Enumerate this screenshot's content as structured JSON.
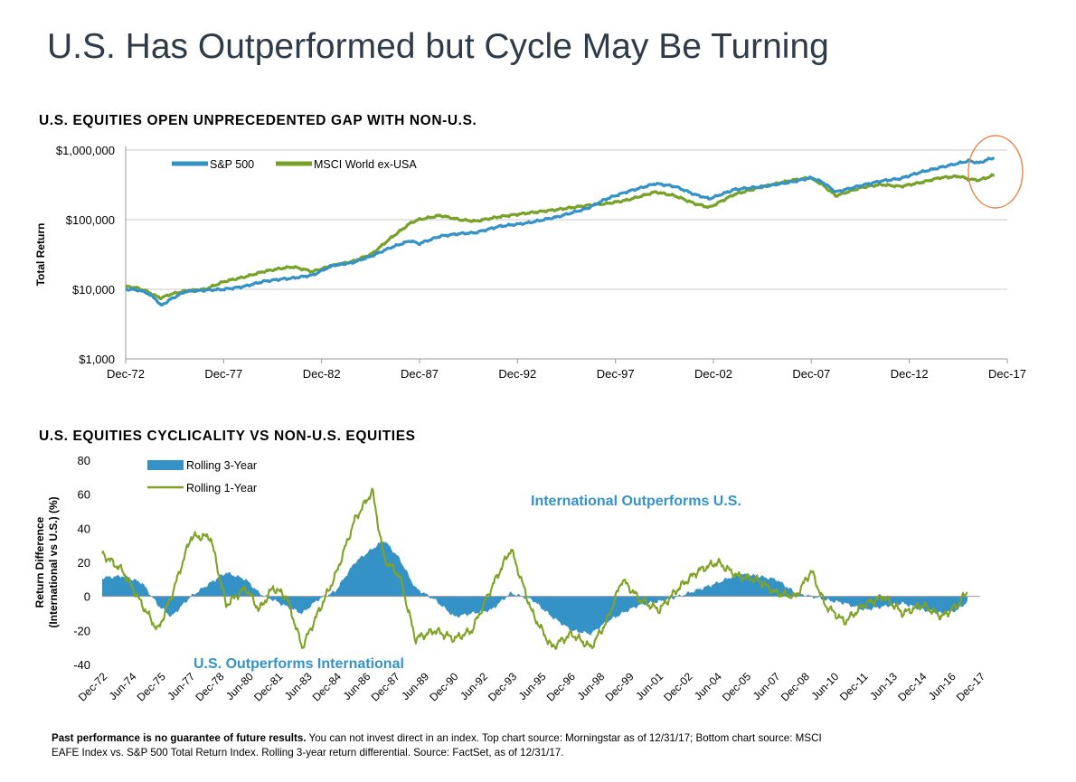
{
  "page": {
    "title": "U.S. Has Outperformed but Cycle May Be Turning",
    "footnote_bold": "Past performance is no guarantee of future results.",
    "footnote_rest": " You can not invest direct in an index. Top chart source: Morningstar as of 12/31/17; Bottom chart source: MSCI EAFE Index vs. S&P 500 Total Return Index. Rolling 3-year return differential. Source: FactSet, as of 12/31/17."
  },
  "colors": {
    "sp500": "#3592c6",
    "msci": "#77a229",
    "rolling3": "#3592c6",
    "rolling1": "#7fa324",
    "highlight_circle": "#e8864a",
    "annotation": "#3592c6"
  },
  "chart_data": [
    {
      "type": "line",
      "title": "U.S. EQUITIES OPEN UNPRECEDENTED GAP WITH NON-U.S.",
      "ylabel": "Total Return",
      "yscale": "log",
      "ylim": [
        1000,
        1000000
      ],
      "yticks": [
        "$1,000",
        "$10,000",
        "$100,000",
        "$1,000,000"
      ],
      "xlim": [
        1972.95,
        2017.95
      ],
      "xticks": [
        "Dec-72",
        "Dec-77",
        "Dec-82",
        "Dec-87",
        "Dec-92",
        "Dec-97",
        "Dec-02",
        "Dec-07",
        "Dec-12",
        "Dec-17"
      ],
      "grid": true,
      "legend": "top-left",
      "annotation": "circle highlighting end of series (2016-2017)",
      "x": [
        1972.95,
        1973.5,
        1974.0,
        1974.5,
        1974.75,
        1975.25,
        1976.0,
        1977.0,
        1978.0,
        1979.0,
        1980.0,
        1980.9,
        1981.5,
        1982.5,
        1983.5,
        1984.5,
        1985.5,
        1986.5,
        1987.5,
        1987.9,
        1989.0,
        1990.0,
        1990.8,
        1992.0,
        1993.5,
        1995.0,
        1996.5,
        1997.5,
        1998.5,
        2000.0,
        2001.0,
        2002.0,
        2002.75,
        2004.0,
        2005.5,
        2007.0,
        2007.9,
        2008.5,
        2009.2,
        2010.5,
        2011.5,
        2012.5,
        2013.5,
        2014.5,
        2015.5,
        2016.0,
        2016.5,
        2017.0,
        2017.3
      ],
      "series": [
        {
          "name": "S&P 500",
          "values": [
            10000,
            9800,
            9000,
            7200,
            5800,
            7200,
            9300,
            9700,
            10000,
            11000,
            13000,
            14000,
            14500,
            16000,
            22000,
            24000,
            30000,
            40000,
            50000,
            45000,
            58000,
            63000,
            65000,
            80000,
            90000,
            110000,
            145000,
            200000,
            250000,
            330000,
            300000,
            230000,
            200000,
            270000,
            300000,
            350000,
            400000,
            350000,
            250000,
            310000,
            360000,
            390000,
            480000,
            560000,
            650000,
            700000,
            650000,
            740000,
            780000
          ]
        },
        {
          "name": "MSCI World ex-USA",
          "values": [
            11000,
            10500,
            9500,
            8000,
            7500,
            8500,
            9500,
            10000,
            13000,
            15000,
            18000,
            20000,
            21000,
            18000,
            22000,
            25000,
            32000,
            55000,
            90000,
            100000,
            115000,
            100000,
            95000,
            110000,
            125000,
            140000,
            160000,
            170000,
            190000,
            250000,
            220000,
            170000,
            150000,
            230000,
            300000,
            370000,
            400000,
            320000,
            220000,
            290000,
            320000,
            300000,
            340000,
            400000,
            420000,
            380000,
            370000,
            410000,
            440000
          ]
        }
      ]
    },
    {
      "type": "area",
      "title": "U.S. EQUITIES CYCLICALITY VS NON-U.S. EQUITIES",
      "ylabel": "Return Difference (International vs U.S.) (%)",
      "ylim": [
        -40,
        80
      ],
      "yticks": [
        -40,
        -20,
        0,
        20,
        40,
        60,
        80
      ],
      "xlim": [
        1972.95,
        2017.95
      ],
      "xticks": [
        "Dec-72",
        "Jun-74",
        "Dec-75",
        "Jun-77",
        "Dec-78",
        "Jun-80",
        "Dec-81",
        "Jun-83",
        "Dec-84",
        "Jun-86",
        "Dec-87",
        "Jun-89",
        "Dec-90",
        "Jun-92",
        "Dec-93",
        "Jun-95",
        "Dec-96",
        "Jun-98",
        "Dec-99",
        "Jun-01",
        "Dec-02",
        "Jun-04",
        "Dec-05",
        "Jun-07",
        "Dec-08",
        "Jun-10",
        "Dec-11",
        "Jun-13",
        "Dec-14",
        "Jun-16",
        "Dec-17"
      ],
      "legend": "top-left",
      "annotations": [
        "International Outperforms U.S.",
        "U.S. Outperforms International"
      ],
      "x": [
        1972.95,
        1974.0,
        1975.0,
        1975.8,
        1976.5,
        1977.5,
        1978.5,
        1979.3,
        1980.3,
        1981.0,
        1981.7,
        1982.4,
        1983.2,
        1984.0,
        1984.9,
        1985.9,
        1986.8,
        1987.4,
        1988.2,
        1989.0,
        1990.0,
        1991.0,
        1991.9,
        1992.9,
        1993.9,
        1995.0,
        1996.0,
        1997.0,
        1998.0,
        1998.8,
        1999.6,
        2000.5,
        2001.5,
        2002.5,
        2003.5,
        2004.5,
        2005.5,
        2006.5,
        2007.5,
        2008.5,
        2009.3,
        2010.0,
        2011.0,
        2012.0,
        2013.0,
        2014.0,
        2015.0,
        2016.0,
        2016.8,
        2017.3
      ],
      "series": [
        {
          "name": "Rolling 3-Year",
          "values": [
            11,
            12,
            8,
            -5,
            -12,
            0,
            8,
            14,
            10,
            2,
            -2,
            -6,
            -10,
            -2,
            3,
            20,
            28,
            33,
            22,
            5,
            -2,
            -12,
            -10,
            -8,
            2,
            -2,
            -12,
            -20,
            -22,
            -15,
            -10,
            -5,
            -3,
            0,
            4,
            8,
            13,
            12,
            10,
            2,
            0,
            -2,
            -4,
            -8,
            -6,
            -4,
            -8,
            -10,
            -8,
            -3
          ]
        },
        {
          "name": "Rolling 1-Year",
          "values": [
            25,
            15,
            -5,
            -20,
            0,
            35,
            35,
            -5,
            5,
            -8,
            5,
            0,
            -30,
            -10,
            12,
            45,
            62,
            22,
            12,
            -25,
            -20,
            -25,
            -20,
            5,
            28,
            -10,
            -30,
            -22,
            -30,
            -15,
            10,
            -2,
            -8,
            5,
            15,
            20,
            12,
            10,
            2,
            0,
            15,
            -5,
            -15,
            -5,
            0,
            -10,
            -5,
            -12,
            -5,
            3
          ]
        }
      ]
    }
  ]
}
